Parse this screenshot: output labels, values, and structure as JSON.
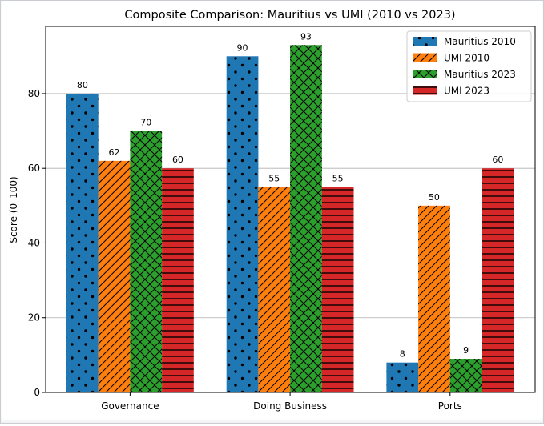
{
  "chart_data": {
    "type": "bar",
    "title": "Composite Comparison: Mauritius vs UMI (2010 vs 2023)",
    "xlabel": "",
    "ylabel": "Score (0–100)",
    "ylim": [
      0,
      98
    ],
    "yticks": [
      0,
      20,
      40,
      60,
      80
    ],
    "grid": "horizontal",
    "legend_position": "top-right",
    "categories": [
      "Governance",
      "Doing Business",
      "Ports"
    ],
    "series": [
      {
        "name": "Mauritius 2010",
        "values": [
          80,
          90,
          8
        ],
        "color": "#1f77b4",
        "hatch": "dots"
      },
      {
        "name": "UMI 2010",
        "values": [
          62,
          55,
          50
        ],
        "color": "#ff7f0e",
        "hatch": "diagonal"
      },
      {
        "name": "Mauritius 2023",
        "values": [
          70,
          93,
          9
        ],
        "color": "#2ca02c",
        "hatch": "crosshatch"
      },
      {
        "name": "UMI 2023",
        "values": [
          60,
          55,
          60
        ],
        "color": "#d62728",
        "hatch": "horizontal"
      }
    ]
  }
}
